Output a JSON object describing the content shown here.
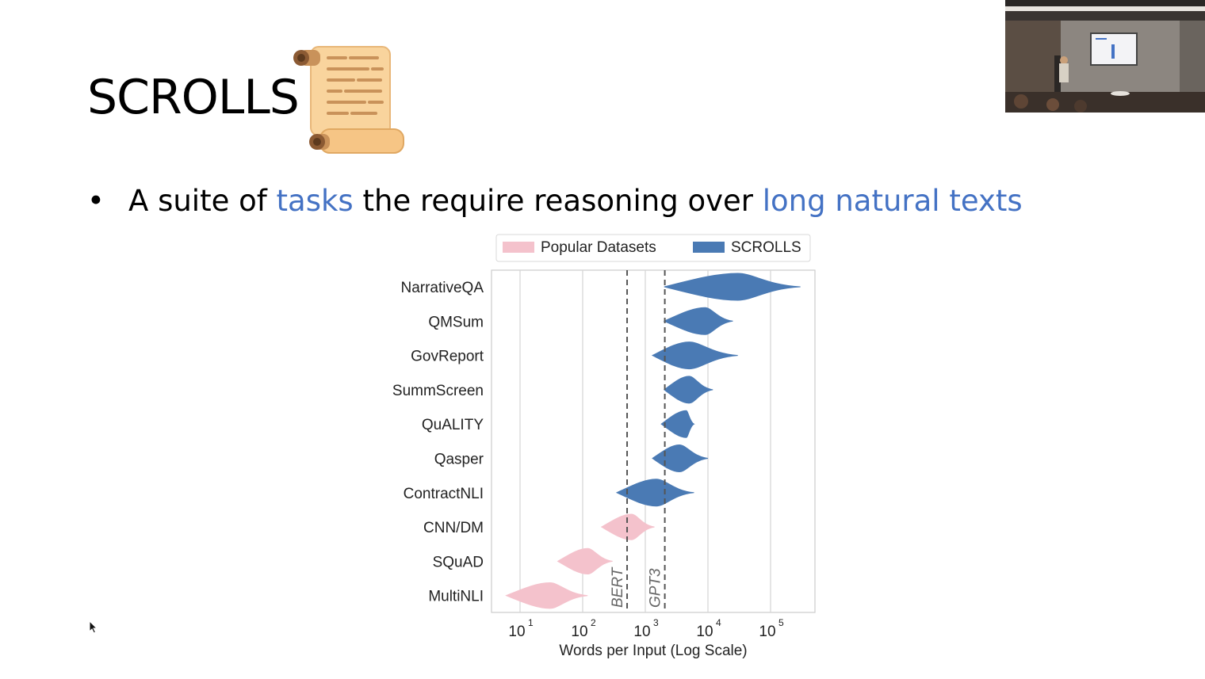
{
  "slide": {
    "title": "SCROLLS",
    "bullet": {
      "symbol": "•",
      "parts": [
        {
          "text": "A suite of ",
          "accent": false
        },
        {
          "text": "tasks",
          "accent": true
        },
        {
          "text": " the require reasoning over ",
          "accent": false
        },
        {
          "text": "long natural texts",
          "accent": true
        }
      ]
    },
    "accent_color": "#4472c4",
    "icon": "scroll-icon"
  },
  "chart_data": {
    "type": "violin",
    "xlabel": "Words per Input (Log Scale)",
    "xscale": "log",
    "xlim": [
      4,
      30000000
    ],
    "xticks": [
      {
        "base": "10",
        "exp": "1",
        "value": 10
      },
      {
        "base": "10",
        "exp": "2",
        "value": 100
      },
      {
        "base": "10",
        "exp": "3",
        "value": 1000
      },
      {
        "base": "10",
        "exp": "4",
        "value": 10000
      },
      {
        "base": "10",
        "exp": "5",
        "value": 100000
      }
    ],
    "grid": "vertical",
    "legend": {
      "placement": "top",
      "entries": [
        {
          "label": "Popular Datasets",
          "color": "#f4c2cc"
        },
        {
          "label": "SCROLLS",
          "color": "#4a7ab4"
        }
      ]
    },
    "reference_lines": [
      {
        "label": "BERT",
        "value": 512
      },
      {
        "label": "GPT3",
        "value": 2048
      }
    ],
    "categories": [
      "NarrativeQA",
      "QMSum",
      "GovReport",
      "SummScreen",
      "QuALITY",
      "Qasper",
      "ContractNLI",
      "CNN/DM",
      "SQuAD",
      "MultiNLI"
    ],
    "series": [
      {
        "name": "SCROLLS",
        "color": "#4a7ab4",
        "datasets": [
          {
            "category": "NarrativeQA",
            "min": 2000,
            "mode": 30000,
            "max": 300000
          },
          {
            "category": "QMSum",
            "min": 2000,
            "mode": 9000,
            "max": 25000
          },
          {
            "category": "GovReport",
            "min": 1300,
            "mode": 5000,
            "max": 30000
          },
          {
            "category": "SummScreen",
            "min": 2000,
            "mode": 5000,
            "max": 12000
          },
          {
            "category": "QuALITY",
            "min": 1800,
            "mode": 4500,
            "max": 6000
          },
          {
            "category": "Qasper",
            "min": 1300,
            "mode": 3500,
            "max": 10000
          },
          {
            "category": "ContractNLI",
            "min": 350,
            "mode": 1500,
            "max": 6000
          }
        ]
      },
      {
        "name": "Popular Datasets",
        "color": "#f4c2cc",
        "datasets": [
          {
            "category": "CNN/DM",
            "min": 200,
            "mode": 600,
            "max": 1400
          },
          {
            "category": "SQuAD",
            "min": 40,
            "mode": 120,
            "max": 300
          },
          {
            "category": "MultiNLI",
            "min": 6,
            "mode": 30,
            "max": 120
          }
        ]
      }
    ]
  }
}
